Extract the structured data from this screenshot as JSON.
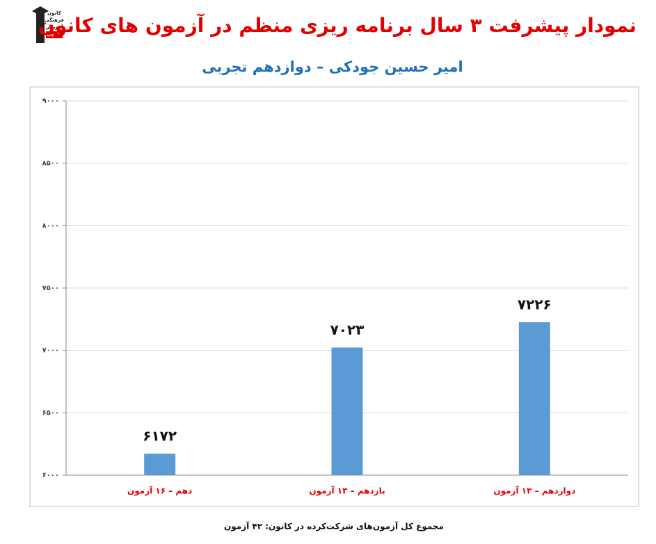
{
  "logo": {
    "lines": [
      "کانون",
      "فرهنگی",
      "آموزش",
      "قلم‌چی"
    ]
  },
  "chart_data": {
    "type": "bar",
    "title": "نمودار پیشرفت ۳ سال برنامه ریزی منظم در آزمون های کانون",
    "subtitle": "امیر حسین جودکی – دوازدهم تجربی",
    "categories": [
      "دهم – ۱۶ آزمون",
      "یازدهم – ۱۳ آزمون",
      "دوازدهم – ۱۳ آزمون"
    ],
    "values": [
      6172,
      7023,
      7226
    ],
    "value_labels": [
      "۶۱۷۲",
      "۷۰۲۳",
      "۷۲۲۶"
    ],
    "color": "#5b9bd5",
    "ylim": [
      6000,
      9000
    ],
    "yticks": [
      {
        "value": 6000,
        "label": "۶۰۰۰"
      },
      {
        "value": 6500,
        "label": "۶۵۰۰"
      },
      {
        "value": 7000,
        "label": "۷۰۰۰"
      },
      {
        "value": 7500,
        "label": "۷۵۰۰"
      },
      {
        "value": 8000,
        "label": "۸۰۰۰"
      },
      {
        "value": 8500,
        "label": "۸۵۰۰"
      },
      {
        "value": 9000,
        "label": "۹۰۰۰"
      }
    ],
    "grid": true,
    "footnote": "مجموع کل آزمون‌های شرکت‌کرده در کانون: ۴۲ آزمون"
  }
}
